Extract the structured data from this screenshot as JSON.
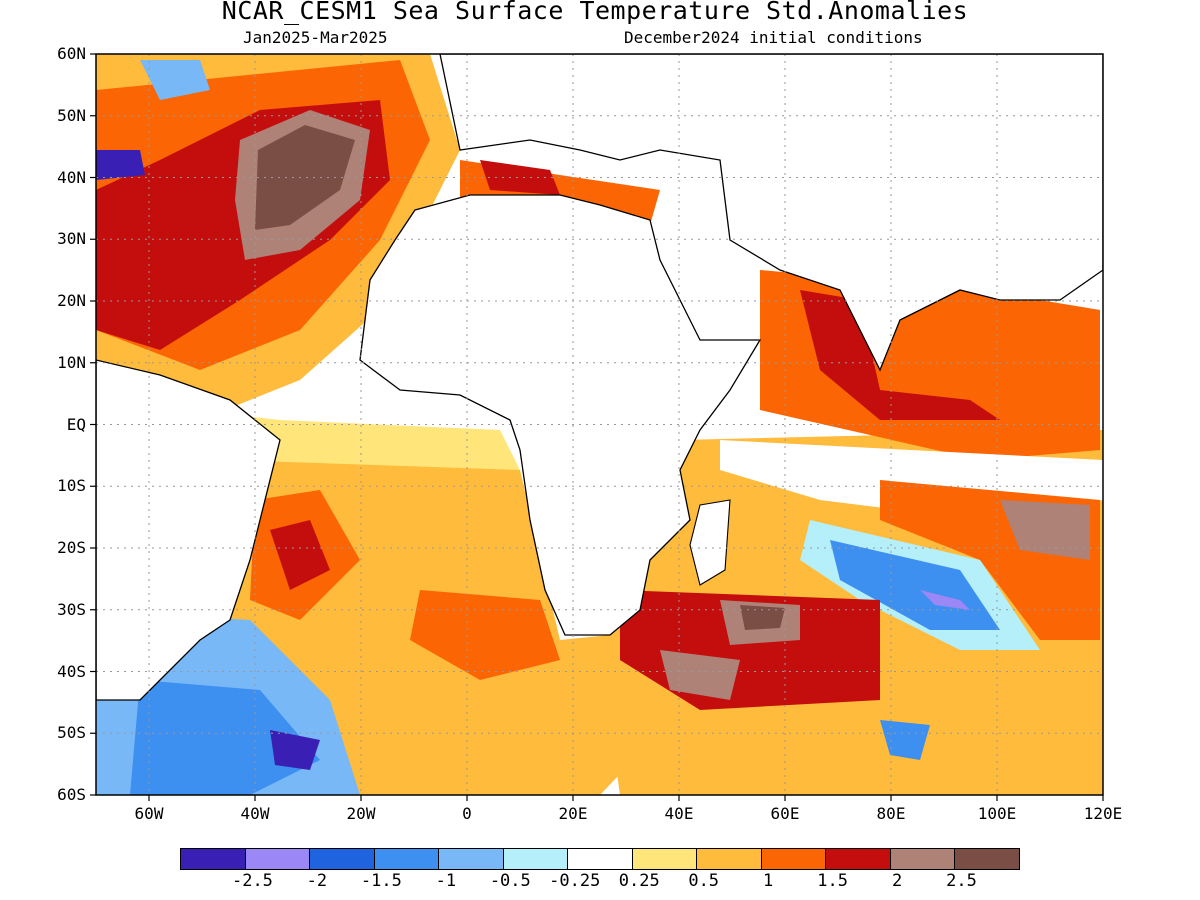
{
  "title": "NCAR_CESM1 Sea Surface Temperature Std.Anomalies",
  "period": "Jan2025-Mar2025",
  "initial_conditions": "December2024 initial conditions",
  "map": {
    "lon_range": [
      -70,
      120
    ],
    "lat_range": [
      -60,
      60
    ],
    "lat_labels": [
      "60N",
      "50N",
      "40N",
      "30N",
      "20N",
      "10N",
      "EQ",
      "10S",
      "20S",
      "30S",
      "40S",
      "50S",
      "60S"
    ],
    "lon_labels": [
      "60W",
      "40W",
      "20W",
      "0",
      "20E",
      "40E",
      "60E",
      "80E",
      "100E",
      "120E"
    ],
    "grid": "dotted"
  },
  "colorbar": {
    "colors": [
      "#3a1fb4",
      "#9b87f5",
      "#1f63de",
      "#3d8ff0",
      "#78b8f7",
      "#b4effa",
      "#ffffff",
      "#ffe57a",
      "#ffbb3b",
      "#fb6503",
      "#c40d0d",
      "#ae8277",
      "#7a4e44"
    ],
    "labels": [
      "-2.5",
      "-2",
      "-1.5",
      "-1",
      "-0.5",
      "-0.25",
      "0.25",
      "0.5",
      "1",
      "1.5",
      "2",
      "2.5"
    ]
  }
}
